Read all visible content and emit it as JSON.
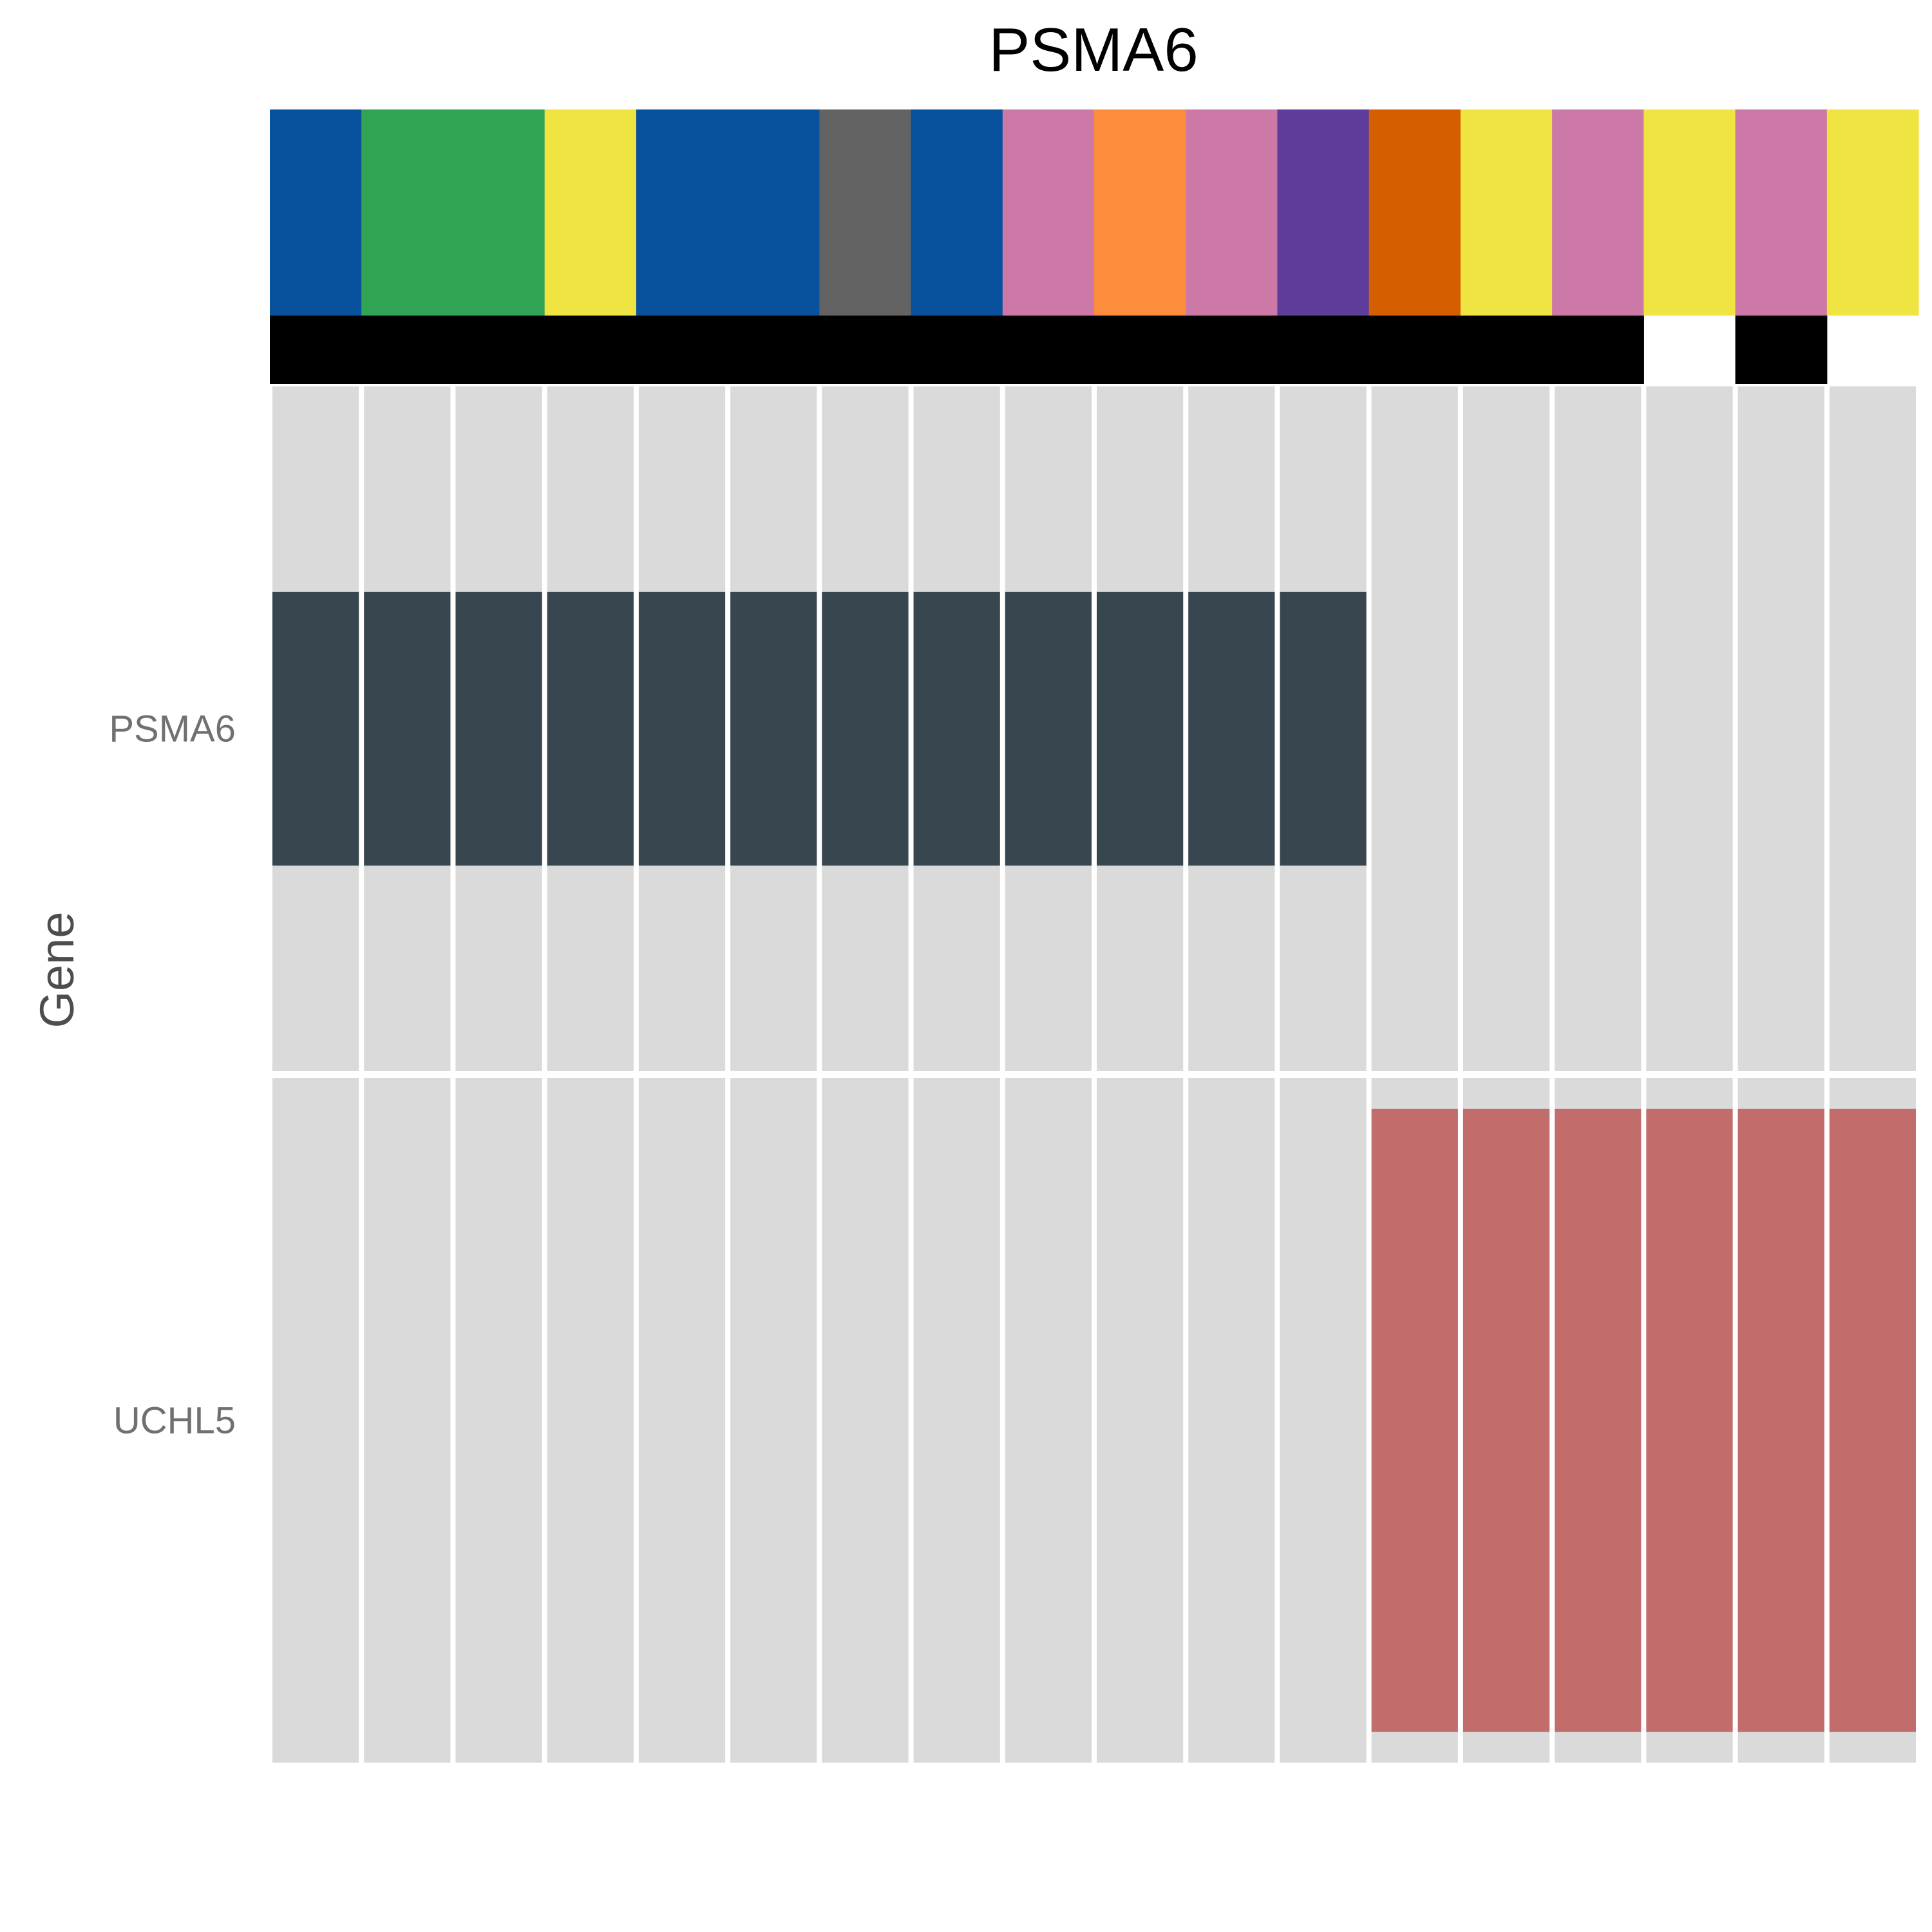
{
  "chart_data": {
    "type": "heatmap",
    "title": "PSMA6",
    "ylabel": "Gene",
    "xlabel": "",
    "n_samples": 18,
    "annotation_track": {
      "colors": [
        "#08519C",
        "#31A354",
        "#31A354",
        "#F0E442",
        "#08519C",
        "#08519C",
        "#636363",
        "#08519C",
        "#CC79A7",
        "#FD8D3C",
        "#CC79A7",
        "#5E3C99",
        "#D55E00",
        "#F0E442",
        "#CC79A7",
        "#F0E442",
        "#CC79A7",
        "#F0E442"
      ]
    },
    "black_track": {
      "values": [
        1,
        1,
        1,
        1,
        1,
        1,
        1,
        1,
        1,
        1,
        1,
        1,
        1,
        1,
        1,
        0,
        1,
        0
      ]
    },
    "genes": [
      {
        "name": "PSMA6",
        "values": [
          1,
          1,
          1,
          1,
          1,
          1,
          1,
          1,
          1,
          1,
          1,
          1,
          0,
          0,
          0,
          0,
          0,
          0
        ],
        "color": "#37464F",
        "bar_extent": [
          0.3,
          0.7
        ]
      },
      {
        "name": "UCHL5",
        "values": [
          0,
          0,
          0,
          0,
          0,
          0,
          0,
          0,
          0,
          0,
          0,
          0,
          1,
          1,
          1,
          1,
          1,
          1
        ],
        "color": "#C26C6B",
        "bar_extent": [
          0.045,
          0.955
        ]
      }
    ],
    "background_color": "#DADADA",
    "grid": true,
    "legend": "none"
  }
}
